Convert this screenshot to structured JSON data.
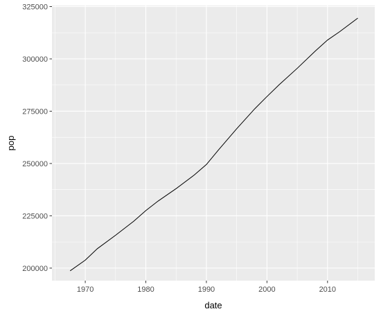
{
  "chart_data": {
    "type": "line",
    "title": "",
    "xlabel": "date",
    "ylabel": "pop",
    "xlim": [
      1964.5,
      2017.8
    ],
    "ylim": [
      194000,
      325500
    ],
    "x_ticks": [
      1970,
      1980,
      1990,
      2000,
      2010
    ],
    "y_ticks": [
      200000,
      225000,
      250000,
      275000,
      300000,
      325000
    ],
    "x_tick_labels": [
      "1970",
      "1980",
      "1990",
      "2000",
      "2010"
    ],
    "y_tick_labels": [
      "200000",
      "225000",
      "250000",
      "275000",
      "300000",
      "325000"
    ],
    "grid": true,
    "colors": {
      "panel": "#ebebeb",
      "grid": "#ffffff",
      "line": "#000000",
      "tick_text": "#4d4d4d"
    },
    "series": [
      {
        "x": [
          1967.5,
          1970,
          1972,
          1975,
          1978,
          1980,
          1982,
          1985,
          1988,
          1990,
          1992,
          1995,
          1998,
          2000,
          2002,
          2005,
          2008,
          2010,
          2012,
          2015
        ],
        "values": [
          198700,
          203800,
          209300,
          215700,
          222400,
          227500,
          232000,
          238000,
          244500,
          249500,
          256500,
          266600,
          276200,
          282000,
          287600,
          295500,
          303800,
          309000,
          313000,
          319500
        ]
      }
    ]
  }
}
